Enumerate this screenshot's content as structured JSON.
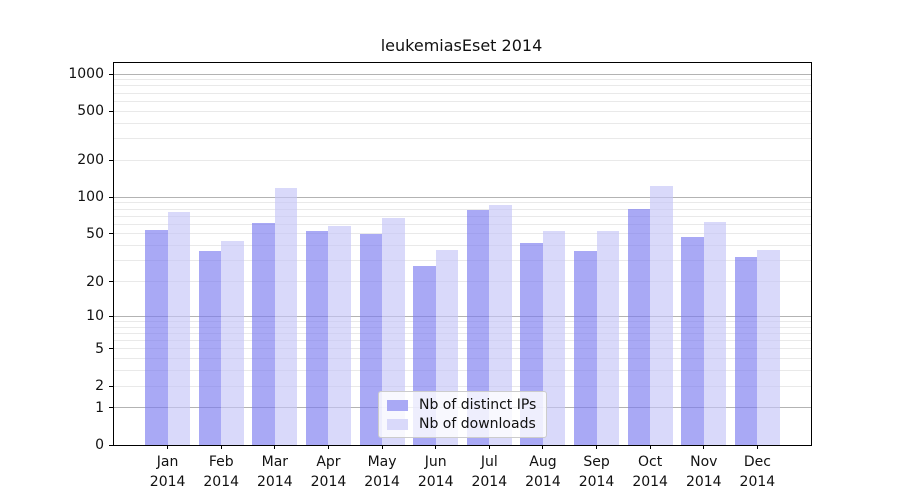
{
  "chart_data": {
    "type": "bar",
    "title": "leukemiasEset 2014",
    "categories": [
      "Jan",
      "Feb",
      "Mar",
      "Apr",
      "May",
      "Jun",
      "Jul",
      "Aug",
      "Sep",
      "Oct",
      "Nov",
      "Dec"
    ],
    "tick_year": "2014",
    "series": [
      {
        "name": "Nb of distinct IPs",
        "legend_color": "#a9a9f5",
        "bar_color": "rgba(123,123,240,0.65)",
        "values": [
          54,
          36,
          62,
          53,
          50,
          27,
          78,
          42,
          36,
          80,
          47,
          32
        ]
      },
      {
        "name": "Nb of downloads",
        "legend_color": "#d9d9fa",
        "bar_color": "rgba(197,197,247,0.65)",
        "values": [
          76,
          44,
          118,
          58,
          67,
          37,
          87,
          53,
          53,
          123,
          63,
          37
        ]
      }
    ],
    "yticks": [
      0,
      1,
      2,
      5,
      10,
      20,
      50,
      100,
      200,
      500,
      1000
    ],
    "major_grid_values": [
      1,
      10,
      100,
      1000
    ],
    "scale": "log1p",
    "grid": true,
    "ylim": [
      0,
      1228
    ],
    "legend_position": "lower-center",
    "colors": {
      "major_grid": "#b3b3b3",
      "minor_grid": "#e9e9e9",
      "spine": "#000000",
      "text": "#111111"
    }
  }
}
